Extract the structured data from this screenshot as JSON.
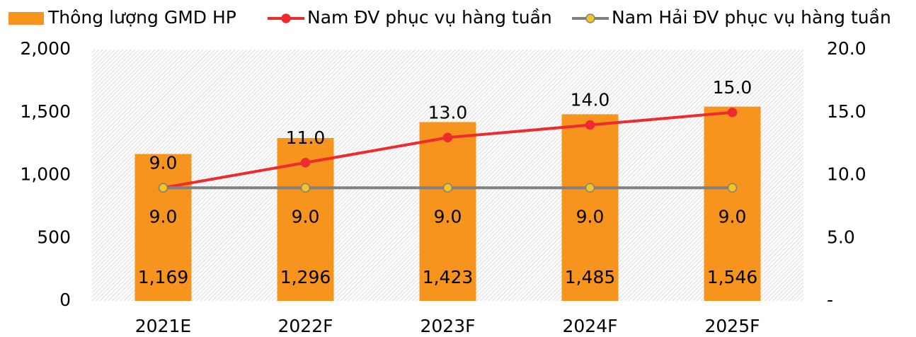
{
  "chart_data": {
    "type": "combo",
    "categories": [
      "2021E",
      "2022F",
      "2023F",
      "2024F",
      "2025F"
    ],
    "series": [
      {
        "name": "Thông lượng GMD HP",
        "type": "bar",
        "color": "#f7941d",
        "values": [
          1169,
          1296,
          1423,
          1485,
          1546
        ],
        "value_labels": [
          "1,169",
          "1,296",
          "1,423",
          "1,485",
          "1,546"
        ]
      },
      {
        "name": "Nam ĐV phục vụ hàng tuần",
        "type": "line",
        "axis": "y2",
        "color": "#ee2b2f",
        "marker_color": "#ee2b2f",
        "values": [
          9,
          11,
          13,
          14,
          15
        ],
        "value_labels": [
          "9.0",
          "11.0",
          "13.0",
          "14.0",
          "15.0"
        ]
      },
      {
        "name": "Nam Hải ĐV phục vụ hàng tuần",
        "type": "line",
        "axis": "y2",
        "color": "#808080",
        "marker_color": "#f3c623",
        "values": [
          9,
          9,
          9,
          9,
          9
        ],
        "value_labels": [
          "9.0",
          "9.0",
          "9.0",
          "9.0",
          "9.0"
        ]
      }
    ],
    "ylim": [
      0,
      2000
    ],
    "yticks": [
      0,
      500,
      {
        "value": 1000,
        "label": "1,000"
      },
      {
        "value": 1500,
        "label": "1,500"
      },
      {
        "value": 2000,
        "label": "2,000"
      }
    ],
    "y2lim": [
      0,
      20
    ],
    "y2ticks": [
      {
        "value": 0,
        "label": "-"
      },
      {
        "value": 5,
        "label": "5.0"
      },
      {
        "value": 10,
        "label": "10.0"
      },
      {
        "value": 15,
        "label": "15.0"
      },
      {
        "value": 20,
        "label": "20.0"
      }
    ],
    "legend": "top"
  }
}
